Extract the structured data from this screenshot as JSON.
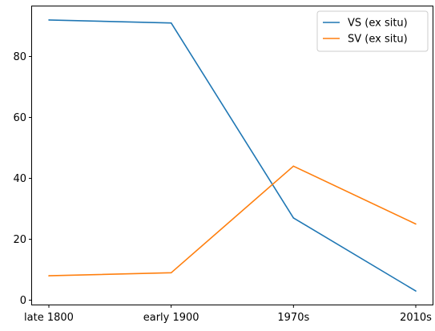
{
  "chart_data": {
    "type": "line",
    "title": "",
    "xlabel": "",
    "ylabel": "",
    "categories": [
      "late 1800",
      "early 1900",
      "1970s",
      "2010s"
    ],
    "series": [
      {
        "name": "VS (ex situ)",
        "color": "#1f77b4",
        "values": [
          92,
          91,
          27,
          3
        ]
      },
      {
        "name": "SV (ex situ)",
        "color": "#ff7f0e",
        "values": [
          8,
          9,
          44,
          25
        ]
      }
    ],
    "ylim": [
      -1.45,
      96.45
    ],
    "yticks": [
      0,
      20,
      40,
      60,
      80
    ],
    "grid": false,
    "legend_position": "top-right"
  }
}
